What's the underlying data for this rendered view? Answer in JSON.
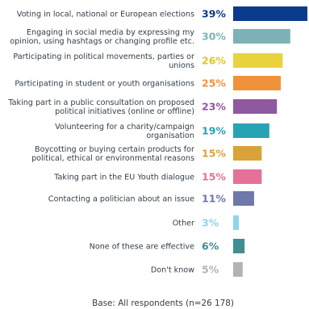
{
  "chart_data": {
    "type": "bar",
    "orientation": "horizontal",
    "categories": [
      [
        "Voting in local, national or European elections"
      ],
      [
        "Engaging in social media by expressing my",
        "opinion, using hashtags or changing profile etc."
      ],
      [
        "Participating in political movements, parties or",
        "unions"
      ],
      [
        "Participating in student or youth organisations"
      ],
      [
        "Taking part in a public consultation on proposed",
        "political initiatives (online or offline)"
      ],
      [
        "Volunteering for a charity/campaign",
        "organisation"
      ],
      [
        "Boycotting or buying certain products for",
        "political, ethical or environmental reasons"
      ],
      [
        "Taking part in the EU Youth dialogue"
      ],
      [
        "Contacting a politician about an issue"
      ],
      [
        "Other"
      ],
      [
        "None of these are effective"
      ],
      [
        "Don't know"
      ]
    ],
    "values": [
      39,
      30,
      26,
      25,
      23,
      19,
      15,
      15,
      11,
      3,
      6,
      5
    ],
    "value_labels": [
      "39%",
      "30%",
      "26%",
      "25%",
      "23%",
      "19%",
      "15%",
      "15%",
      "11%",
      "3%",
      "6%",
      "5%"
    ],
    "colors": [
      "#0b3b8c",
      "#7db3b8",
      "#e8d33f",
      "#f0923a",
      "#8e59a0",
      "#27a3b4",
      "#d9a33a",
      "#e5709a",
      "#6f78ab",
      "#8fd4ea",
      "#3f8f92",
      "#b3b3b3"
    ],
    "value_label_colors": [
      "#0b3b8c",
      "#7db3b8",
      "#e3c52a",
      "#f0923a",
      "#8e59a0",
      "#27a3b4",
      "#d9a33a",
      "#e5709a",
      "#6f78ab",
      "#8fd4ea",
      "#3f8f92",
      "#b3b3b3"
    ],
    "xlim": [
      0,
      39
    ],
    "grid": false,
    "legend": "none",
    "footnote": "Base: All respondents (n=26 178)"
  }
}
